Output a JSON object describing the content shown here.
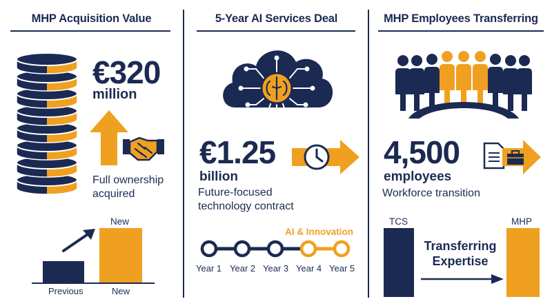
{
  "panels": [
    {
      "title": "MHP Acquisition Value",
      "value": "€320",
      "unit": "million",
      "description_lines": [
        "Full ownership",
        "acquired"
      ],
      "bar_chart": {
        "labels_top": [
          "New"
        ],
        "labels_bottom": [
          "Previous",
          "New"
        ]
      }
    },
    {
      "title": "5-Year AI Services Deal",
      "value": "€1.25",
      "unit": "billion",
      "description_lines": [
        "Future-focused",
        "technology contract"
      ],
      "timeline_tag": "AI & Innovation",
      "timeline": [
        "Year 1",
        "Year 2",
        "Year 3",
        "Year 4",
        "Year 5"
      ]
    },
    {
      "title": "MHP Employees Transferring",
      "value": "4,500",
      "unit": "employees",
      "description": "Workforce transition",
      "from_label": "TCS",
      "to_label": "MHP",
      "transfer_lines": [
        "Transferring",
        "Expertise"
      ]
    }
  ],
  "colors": {
    "navy": "#1b2a52",
    "orange": "#f0a020"
  },
  "icons": [
    "coin-stack-icon",
    "up-arrow-icon",
    "handshake-icon",
    "trend-arrow-icon",
    "ai-cloud-brain-icon",
    "clock-arrow-icon",
    "people-group-icon",
    "bridge-icon",
    "document-icon",
    "briefcase-icon",
    "right-arrow-icon"
  ]
}
